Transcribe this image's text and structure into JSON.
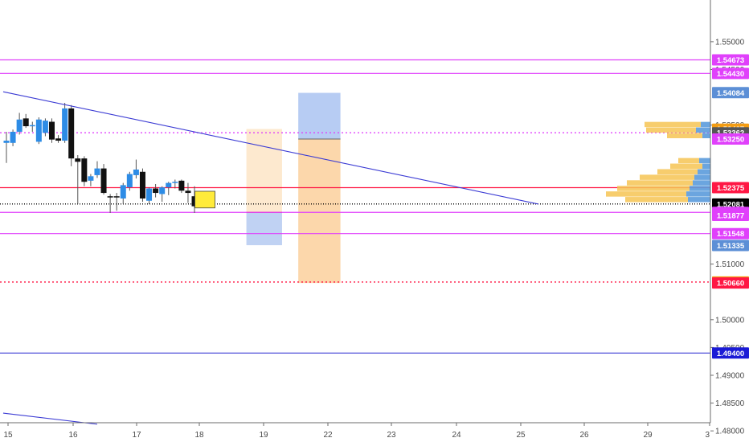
{
  "chart_data": {
    "type": "candlestick",
    "x_axis": {
      "labels": [
        "15",
        "16",
        "17",
        "18",
        "19",
        "22",
        "23",
        "24",
        "25",
        "26",
        "29",
        "3"
      ]
    },
    "y_axis": {
      "range": [
        1.478,
        1.5575
      ],
      "tick_labels": [
        "1.55000",
        "1.54500",
        "1.53500",
        "1.51000",
        "1.50000",
        "1.49500",
        "1.49000",
        "1.48500",
        "1.48000"
      ],
      "ticks": [
        1.55,
        1.545,
        1.535,
        1.51,
        1.5,
        1.495,
        1.49,
        1.485,
        1.48
      ]
    },
    "candles": [
      {
        "o": 1.5318,
        "h": 1.5338,
        "l": 1.5282,
        "c": 1.5322
      },
      {
        "o": 1.5318,
        "h": 1.5342,
        "l": 1.5312,
        "c": 1.5338
      },
      {
        "o": 1.5338,
        "h": 1.5372,
        "l": 1.5333,
        "c": 1.536
      },
      {
        "o": 1.5362,
        "h": 1.537,
        "l": 1.5345,
        "c": 1.5348
      },
      {
        "o": 1.5348,
        "h": 1.5356,
        "l": 1.5338,
        "c": 1.535
      },
      {
        "o": 1.532,
        "h": 1.5364,
        "l": 1.5316,
        "c": 1.536
      },
      {
        "o": 1.5336,
        "h": 1.5362,
        "l": 1.533,
        "c": 1.5358
      },
      {
        "o": 1.5356,
        "h": 1.5362,
        "l": 1.5318,
        "c": 1.5324
      },
      {
        "o": 1.5326,
        "h": 1.5332,
        "l": 1.5318,
        "c": 1.5322
      },
      {
        "o": 1.5322,
        "h": 1.539,
        "l": 1.5318,
        "c": 1.538
      },
      {
        "o": 1.538,
        "h": 1.5386,
        "l": 1.5276,
        "c": 1.529
      },
      {
        "o": 1.529,
        "h": 1.5296,
        "l": 1.5208,
        "c": 1.5284
      },
      {
        "o": 1.529,
        "h": 1.5294,
        "l": 1.524,
        "c": 1.5248
      },
      {
        "o": 1.525,
        "h": 1.5262,
        "l": 1.524,
        "c": 1.5258
      },
      {
        "o": 1.526,
        "h": 1.5285,
        "l": 1.5255,
        "c": 1.5272
      },
      {
        "o": 1.5272,
        "h": 1.528,
        "l": 1.5225,
        "c": 1.5228
      },
      {
        "o": 1.5222,
        "h": 1.5226,
        "l": 1.5192,
        "c": 1.522
      },
      {
        "o": 1.5222,
        "h": 1.5228,
        "l": 1.5196,
        "c": 1.522
      },
      {
        "o": 1.5218,
        "h": 1.5246,
        "l": 1.5208,
        "c": 1.5242
      },
      {
        "o": 1.5238,
        "h": 1.5266,
        "l": 1.5232,
        "c": 1.5262
      },
      {
        "o": 1.526,
        "h": 1.5288,
        "l": 1.5254,
        "c": 1.527
      },
      {
        "o": 1.5266,
        "h": 1.5272,
        "l": 1.5212,
        "c": 1.5218
      },
      {
        "o": 1.5214,
        "h": 1.5238,
        "l": 1.5208,
        "c": 1.5236
      },
      {
        "o": 1.5236,
        "h": 1.5244,
        "l": 1.522,
        "c": 1.5228
      },
      {
        "o": 1.5226,
        "h": 1.524,
        "l": 1.5212,
        "c": 1.5238
      },
      {
        "o": 1.5238,
        "h": 1.5248,
        "l": 1.5224,
        "c": 1.5246
      },
      {
        "o": 1.5246,
        "h": 1.5252,
        "l": 1.5236,
        "c": 1.5248
      },
      {
        "o": 1.525,
        "h": 1.5252,
        "l": 1.5228,
        "c": 1.5232
      },
      {
        "o": 1.5232,
        "h": 1.5246,
        "l": 1.521,
        "c": 1.5228
      },
      {
        "o": 1.5222,
        "h": 1.524,
        "l": 1.5192,
        "c": 1.5204
      }
    ],
    "price_lines": [
      {
        "value": 1.54673,
        "color": "#e040fb",
        "style": "solid"
      },
      {
        "value": 1.5443,
        "color": "#e040fb",
        "style": "solid"
      },
      {
        "value": 1.53362,
        "color": "#e040fb",
        "style": "dotted"
      },
      {
        "value": 1.52375,
        "color": "#ff1744",
        "style": "solid"
      },
      {
        "value": 1.52081,
        "color": "#000000",
        "style": "dotted"
      },
      {
        "value": 1.5193,
        "color": "#e040fb",
        "style": "solid"
      },
      {
        "value": 1.51548,
        "color": "#e040fb",
        "style": "solid"
      },
      {
        "value": 1.50678,
        "color": "#ff1744",
        "style": "dotted"
      },
      {
        "value": 1.494,
        "color": "#3b3bd4",
        "style": "solid"
      }
    ],
    "badges": [
      {
        "label": "1.54673",
        "value": 1.54673,
        "color": "#e040fb"
      },
      {
        "label": "1.54430",
        "value": 1.5443,
        "color": "#e040fb"
      },
      {
        "label": "1.54084",
        "value": 1.54084,
        "color": "#5c8fd6"
      },
      {
        "label": "1.53427",
        "value": 1.53427,
        "color": "#f39c12"
      },
      {
        "label": "1.53362",
        "value": 1.53362,
        "color": "#555555"
      },
      {
        "label": "1.53250",
        "value": 1.5325,
        "color": "#e040fb"
      },
      {
        "label": "1.52375",
        "value": 1.52375,
        "color": "#ff1744"
      },
      {
        "label": "1.52081",
        "value": 1.52081,
        "color": "#000000"
      },
      {
        "label": "1.51930",
        "value": 1.5193,
        "color": "#e040fb"
      },
      {
        "label": "1.51877",
        "value": 1.51877,
        "color": "#e040fb"
      },
      {
        "label": "1.51548",
        "value": 1.51548,
        "color": "#e040fb"
      },
      {
        "label": "1.51335",
        "value": 1.51335,
        "color": "#5c8fd6"
      },
      {
        "label": "1.50678",
        "value": 1.50678,
        "color": "#f39c12"
      },
      {
        "label": "1.50660",
        "value": 1.5066,
        "color": "#ff1744"
      },
      {
        "label": "1.49400",
        "value": 1.494,
        "color": "#1a1ad6"
      }
    ],
    "trendlines": [
      {
        "from": {
          "bar": -0.5,
          "price": 1.541
        },
        "to": {
          "bar": 82,
          "price": 1.5208
        },
        "color": "#3b3bd4"
      },
      {
        "from": {
          "bar": -0.5,
          "price": 1.4832
        },
        "to": {
          "bar": 14,
          "price": 1.4812
        },
        "color": "#3b3bd4"
      }
    ],
    "positions": [
      {
        "type": "short",
        "x_from_bar": 37,
        "x_to_bar": 42.5,
        "entry": 1.5193,
        "target": 1.5134,
        "stop": 1.5343
      },
      {
        "type": "long",
        "x_from_bar": 45,
        "x_to_bar": 51.5,
        "entry": 1.5325,
        "target": 1.5408,
        "stop": 1.5066
      }
    ],
    "volume_profile": [
      {
        "price": 1.535,
        "up": 12,
        "down": 70
      },
      {
        "price": 1.534,
        "up": 18,
        "down": 62
      },
      {
        "price": 1.533,
        "up": 10,
        "down": 44
      },
      {
        "price": 1.5285,
        "up": 14,
        "down": 26
      },
      {
        "price": 1.5275,
        "up": 10,
        "down": 40
      },
      {
        "price": 1.5265,
        "up": 16,
        "down": 50
      },
      {
        "price": 1.5255,
        "up": 20,
        "down": 68
      },
      {
        "price": 1.5245,
        "up": 22,
        "down": 82
      },
      {
        "price": 1.5235,
        "up": 26,
        "down": 90
      },
      {
        "price": 1.5225,
        "up": 30,
        "down": 100
      },
      {
        "price": 1.5215,
        "up": 28,
        "down": 78
      }
    ]
  }
}
